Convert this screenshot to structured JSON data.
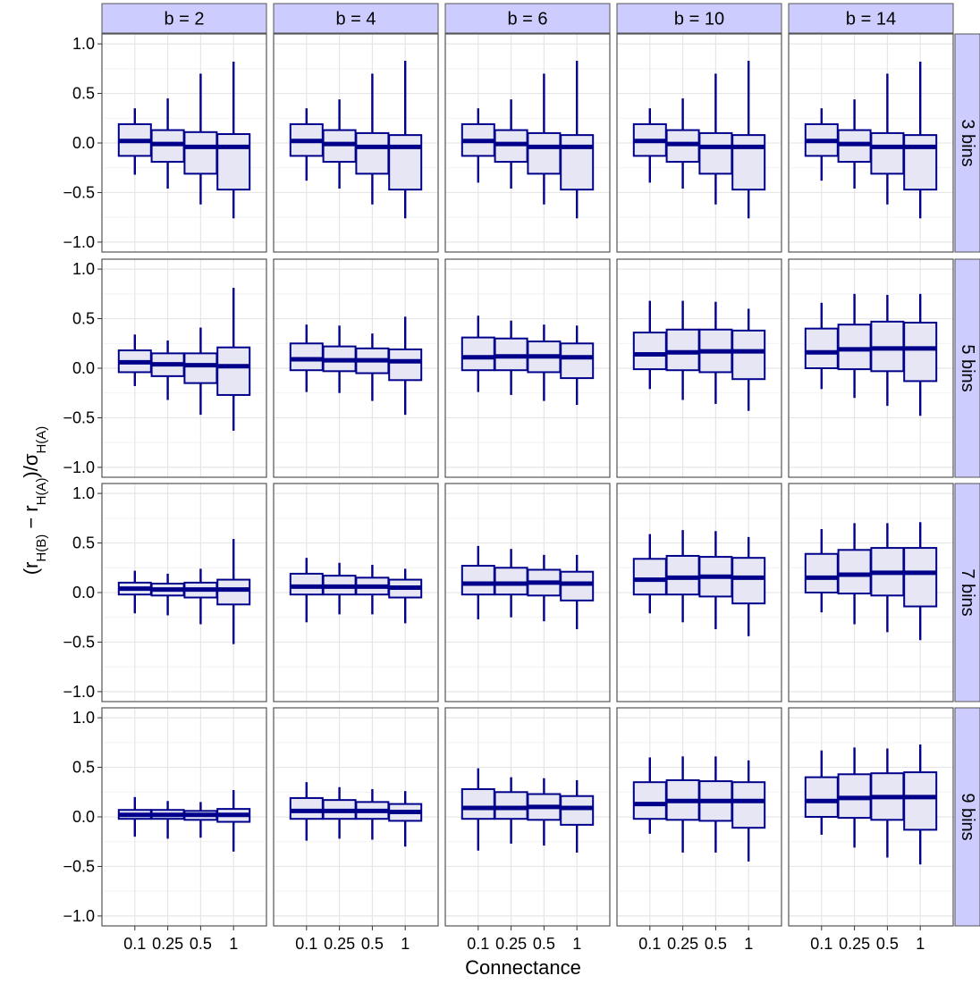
{
  "chart_data": {
    "type": "boxplot",
    "xlabel": "Connectance",
    "ylabel": {
      "prefix": "(r",
      "sub1": "H(B)",
      "mid": " − r",
      "sub2": "H(A)",
      "mid2": ")/σ",
      "sub3": "H(A)"
    },
    "x_categories": [
      "0.1",
      "0.25",
      "0.5",
      "1"
    ],
    "y_ticks": [
      1.0,
      0.5,
      0.0,
      -0.5,
      -1.0
    ],
    "y_tick_labels": [
      "1.0",
      "0.5",
      "0.0",
      "−0.5",
      "−1.0"
    ],
    "ylim": [
      -1.1,
      1.1
    ],
    "grid": true,
    "col_facets": [
      "b = 2",
      "b = 4",
      "b = 6",
      "b = 10",
      "b = 14"
    ],
    "row_facets": [
      "3 bins",
      "5 bins",
      "7 bins",
      "9 bins"
    ],
    "colors": {
      "strip_bg": "#ccccff",
      "box_fill": "#e6e6f5",
      "box_stroke": "#00008b",
      "panel_border": "#555555",
      "grid_major": "#e6e6e6",
      "grid_minor": "#f2f2f2"
    },
    "boxes_note_order": "[lower_whisker, q1, median, q3, upper_whisker]",
    "boxes": [
      [
        [
          [
            -0.32,
            -0.13,
            0.02,
            0.19,
            0.35
          ],
          [
            -0.46,
            -0.19,
            -0.01,
            0.13,
            0.45
          ],
          [
            -0.62,
            -0.31,
            -0.04,
            0.11,
            0.7
          ],
          [
            -0.76,
            -0.47,
            -0.04,
            0.09,
            0.82
          ]
        ],
        [
          [
            -0.38,
            -0.13,
            0.02,
            0.19,
            0.35
          ],
          [
            -0.46,
            -0.19,
            -0.01,
            0.13,
            0.44
          ],
          [
            -0.62,
            -0.31,
            -0.04,
            0.1,
            0.7
          ],
          [
            -0.76,
            -0.47,
            -0.04,
            0.08,
            0.83
          ]
        ],
        [
          [
            -0.4,
            -0.13,
            0.02,
            0.19,
            0.35
          ],
          [
            -0.46,
            -0.19,
            -0.01,
            0.13,
            0.44
          ],
          [
            -0.62,
            -0.31,
            -0.04,
            0.1,
            0.7
          ],
          [
            -0.76,
            -0.47,
            -0.04,
            0.08,
            0.83
          ]
        ],
        [
          [
            -0.4,
            -0.13,
            0.02,
            0.19,
            0.35
          ],
          [
            -0.46,
            -0.19,
            -0.01,
            0.13,
            0.45
          ],
          [
            -0.62,
            -0.31,
            -0.04,
            0.1,
            0.7
          ],
          [
            -0.76,
            -0.47,
            -0.04,
            0.08,
            0.83
          ]
        ],
        [
          [
            -0.38,
            -0.13,
            0.02,
            0.19,
            0.35
          ],
          [
            -0.46,
            -0.19,
            -0.01,
            0.13,
            0.44
          ],
          [
            -0.62,
            -0.31,
            -0.04,
            0.1,
            0.7
          ],
          [
            -0.76,
            -0.47,
            -0.04,
            0.08,
            0.82
          ]
        ]
      ],
      [
        [
          [
            -0.18,
            -0.04,
            0.06,
            0.18,
            0.34
          ],
          [
            -0.32,
            -0.08,
            0.04,
            0.15,
            0.28
          ],
          [
            -0.47,
            -0.15,
            0.03,
            0.15,
            0.41
          ],
          [
            -0.63,
            -0.27,
            0.02,
            0.21,
            0.81
          ]
        ],
        [
          [
            -0.24,
            -0.02,
            0.09,
            0.25,
            0.44
          ],
          [
            -0.25,
            -0.03,
            0.08,
            0.22,
            0.43
          ],
          [
            -0.33,
            -0.05,
            0.08,
            0.2,
            0.35
          ],
          [
            -0.47,
            -0.12,
            0.07,
            0.19,
            0.52
          ]
        ],
        [
          [
            -0.24,
            -0.02,
            0.11,
            0.31,
            0.53
          ],
          [
            -0.27,
            -0.02,
            0.12,
            0.3,
            0.48
          ],
          [
            -0.33,
            -0.04,
            0.12,
            0.27,
            0.44
          ],
          [
            -0.37,
            -0.1,
            0.11,
            0.25,
            0.43
          ]
        ],
        [
          [
            -0.21,
            -0.01,
            0.14,
            0.36,
            0.68
          ],
          [
            -0.32,
            -0.02,
            0.16,
            0.39,
            0.68
          ],
          [
            -0.36,
            -0.04,
            0.17,
            0.39,
            0.67
          ],
          [
            -0.43,
            -0.11,
            0.17,
            0.38,
            0.6
          ]
        ],
        [
          [
            -0.21,
            0.0,
            0.16,
            0.4,
            0.66
          ],
          [
            -0.3,
            -0.01,
            0.19,
            0.44,
            0.75
          ],
          [
            -0.38,
            -0.03,
            0.2,
            0.47,
            0.74
          ],
          [
            -0.48,
            -0.13,
            0.2,
            0.46,
            0.75
          ]
        ]
      ],
      [
        [
          [
            -0.21,
            -0.02,
            0.04,
            0.1,
            0.22
          ],
          [
            -0.23,
            -0.03,
            0.03,
            0.09,
            0.19
          ],
          [
            -0.32,
            -0.05,
            0.03,
            0.1,
            0.24
          ],
          [
            -0.52,
            -0.12,
            0.03,
            0.13,
            0.54
          ]
        ],
        [
          [
            -0.3,
            -0.02,
            0.06,
            0.19,
            0.35
          ],
          [
            -0.22,
            -0.02,
            0.06,
            0.17,
            0.3
          ],
          [
            -0.22,
            -0.02,
            0.06,
            0.15,
            0.28
          ],
          [
            -0.31,
            -0.05,
            0.05,
            0.13,
            0.24
          ]
        ],
        [
          [
            -0.27,
            -0.02,
            0.09,
            0.27,
            0.47
          ],
          [
            -0.25,
            -0.02,
            0.09,
            0.25,
            0.44
          ],
          [
            -0.29,
            -0.03,
            0.1,
            0.23,
            0.38
          ],
          [
            -0.37,
            -0.08,
            0.09,
            0.21,
            0.38
          ]
        ],
        [
          [
            -0.21,
            -0.02,
            0.13,
            0.34,
            0.59
          ],
          [
            -0.3,
            -0.02,
            0.15,
            0.37,
            0.63
          ],
          [
            -0.37,
            -0.04,
            0.16,
            0.36,
            0.62
          ],
          [
            -0.44,
            -0.11,
            0.15,
            0.35,
            0.56
          ]
        ],
        [
          [
            -0.2,
            0.0,
            0.15,
            0.39,
            0.64
          ],
          [
            -0.32,
            -0.01,
            0.18,
            0.43,
            0.7
          ],
          [
            -0.4,
            -0.03,
            0.2,
            0.45,
            0.7
          ],
          [
            -0.48,
            -0.14,
            0.2,
            0.45,
            0.71
          ]
        ]
      ],
      [
        [
          [
            -0.2,
            -0.02,
            0.02,
            0.07,
            0.2
          ],
          [
            -0.22,
            -0.02,
            0.02,
            0.07,
            0.16
          ],
          [
            -0.21,
            -0.03,
            0.02,
            0.06,
            0.15
          ],
          [
            -0.35,
            -0.05,
            0.02,
            0.08,
            0.27
          ]
        ],
        [
          [
            -0.24,
            -0.02,
            0.06,
            0.19,
            0.35
          ],
          [
            -0.22,
            -0.02,
            0.06,
            0.17,
            0.3
          ],
          [
            -0.23,
            -0.02,
            0.06,
            0.15,
            0.28
          ],
          [
            -0.3,
            -0.04,
            0.05,
            0.13,
            0.26
          ]
        ],
        [
          [
            -0.34,
            -0.02,
            0.09,
            0.28,
            0.49
          ],
          [
            -0.27,
            -0.02,
            0.09,
            0.25,
            0.4
          ],
          [
            -0.29,
            -0.03,
            0.1,
            0.23,
            0.39
          ],
          [
            -0.36,
            -0.08,
            0.09,
            0.21,
            0.37
          ]
        ],
        [
          [
            -0.17,
            -0.02,
            0.13,
            0.35,
            0.6
          ],
          [
            -0.36,
            -0.03,
            0.16,
            0.37,
            0.61
          ],
          [
            -0.36,
            -0.04,
            0.16,
            0.36,
            0.61
          ],
          [
            -0.45,
            -0.11,
            0.16,
            0.35,
            0.57
          ]
        ],
        [
          [
            -0.18,
            0.0,
            0.16,
            0.4,
            0.67
          ],
          [
            -0.31,
            -0.01,
            0.19,
            0.43,
            0.7
          ],
          [
            -0.41,
            -0.03,
            0.2,
            0.44,
            0.69
          ],
          [
            -0.48,
            -0.13,
            0.2,
            0.45,
            0.73
          ]
        ]
      ]
    ]
  }
}
